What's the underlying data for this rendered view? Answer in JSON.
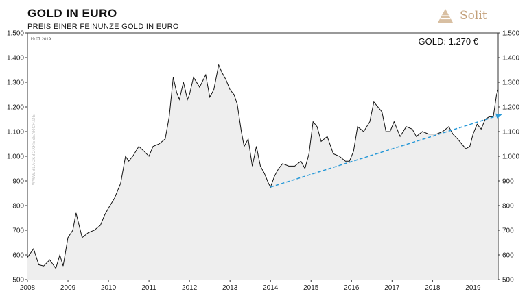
{
  "brand": {
    "name": "Solit",
    "accent": "#c3a07a"
  },
  "chart_data": {
    "type": "area",
    "title": "GOLD IN EURO",
    "subtitle": "PREIS EINER FEINUNZE GOLD IN EURO",
    "date_label": "19.07.2019",
    "readout": "GOLD: 1.270 €",
    "watermark": "WWW.BLACKBOXRESEARCH.DE",
    "xlabel": "",
    "ylabel": "",
    "ylim": [
      500,
      1500
    ],
    "xlim": [
      2008,
      2019.62
    ],
    "y_ticks": [
      500,
      600,
      700,
      800,
      900,
      1000,
      1100,
      1200,
      1300,
      1400,
      1500
    ],
    "y_tick_labels": [
      "500",
      "600",
      "700",
      "800",
      "900",
      "1.000",
      "1.100",
      "1.200",
      "1.300",
      "1.400",
      "1.500"
    ],
    "x_ticks": [
      2008,
      2009,
      2010,
      2011,
      2012,
      2013,
      2014,
      2015,
      2016,
      2017,
      2018,
      2019
    ],
    "x_tick_labels": [
      "2008",
      "2009",
      "2010",
      "2011",
      "2012",
      "2013",
      "2014",
      "2015",
      "2016",
      "2017",
      "2018",
      "2019"
    ],
    "series": [
      {
        "name": "Gold in Euro",
        "x": [
          2008.0,
          2008.15,
          2008.28,
          2008.4,
          2008.55,
          2008.7,
          2008.8,
          2008.88,
          2009.0,
          2009.12,
          2009.2,
          2009.35,
          2009.5,
          2009.65,
          2009.8,
          2009.9,
          2010.0,
          2010.15,
          2010.3,
          2010.42,
          2010.5,
          2010.6,
          2010.75,
          2010.88,
          2011.0,
          2011.1,
          2011.25,
          2011.4,
          2011.5,
          2011.6,
          2011.68,
          2011.75,
          2011.85,
          2011.95,
          2012.0,
          2012.1,
          2012.25,
          2012.4,
          2012.5,
          2012.6,
          2012.72,
          2012.8,
          2012.9,
          2013.0,
          2013.1,
          2013.18,
          2013.28,
          2013.35,
          2013.45,
          2013.55,
          2013.65,
          2013.75,
          2013.85,
          2013.95,
          2014.0,
          2014.1,
          2014.2,
          2014.3,
          2014.45,
          2014.6,
          2014.75,
          2014.85,
          2014.95,
          2015.05,
          2015.15,
          2015.25,
          2015.4,
          2015.55,
          2015.7,
          2015.85,
          2015.95,
          2016.05,
          2016.15,
          2016.3,
          2016.45,
          2016.55,
          2016.65,
          2016.75,
          2016.85,
          2016.95,
          2017.05,
          2017.2,
          2017.35,
          2017.5,
          2017.6,
          2017.75,
          2017.9,
          2018.0,
          2018.1,
          2018.25,
          2018.4,
          2018.5,
          2018.62,
          2018.72,
          2018.82,
          2018.92,
          2019.0,
          2019.1,
          2019.2,
          2019.3,
          2019.4,
          2019.5,
          2019.58,
          2019.62
        ],
        "values": [
          590,
          625,
          560,
          555,
          580,
          545,
          600,
          555,
          670,
          700,
          770,
          670,
          690,
          700,
          720,
          760,
          790,
          830,
          890,
          1000,
          980,
          1000,
          1040,
          1020,
          1000,
          1040,
          1050,
          1070,
          1160,
          1320,
          1260,
          1230,
          1300,
          1230,
          1250,
          1320,
          1280,
          1330,
          1240,
          1270,
          1370,
          1340,
          1310,
          1270,
          1250,
          1210,
          1100,
          1040,
          1070,
          960,
          1040,
          960,
          930,
          890,
          875,
          920,
          950,
          970,
          960,
          960,
          980,
          950,
          1010,
          1140,
          1120,
          1060,
          1080,
          1010,
          1000,
          980,
          980,
          1020,
          1120,
          1100,
          1140,
          1220,
          1200,
          1180,
          1100,
          1100,
          1140,
          1080,
          1120,
          1110,
          1080,
          1100,
          1090,
          1090,
          1090,
          1100,
          1120,
          1090,
          1070,
          1050,
          1030,
          1040,
          1090,
          1130,
          1110,
          1150,
          1160,
          1160,
          1250,
          1270
        ]
      }
    ],
    "trendline": {
      "x": [
        2014.0,
        2019.62
      ],
      "values": [
        875,
        1135
      ],
      "extends_to_x": 2019.72,
      "extends_to_value": 1170,
      "color": "#2a9ad8"
    },
    "colors": {
      "line": "#111111",
      "area": "#eeeeee",
      "axis": "#333333"
    }
  }
}
